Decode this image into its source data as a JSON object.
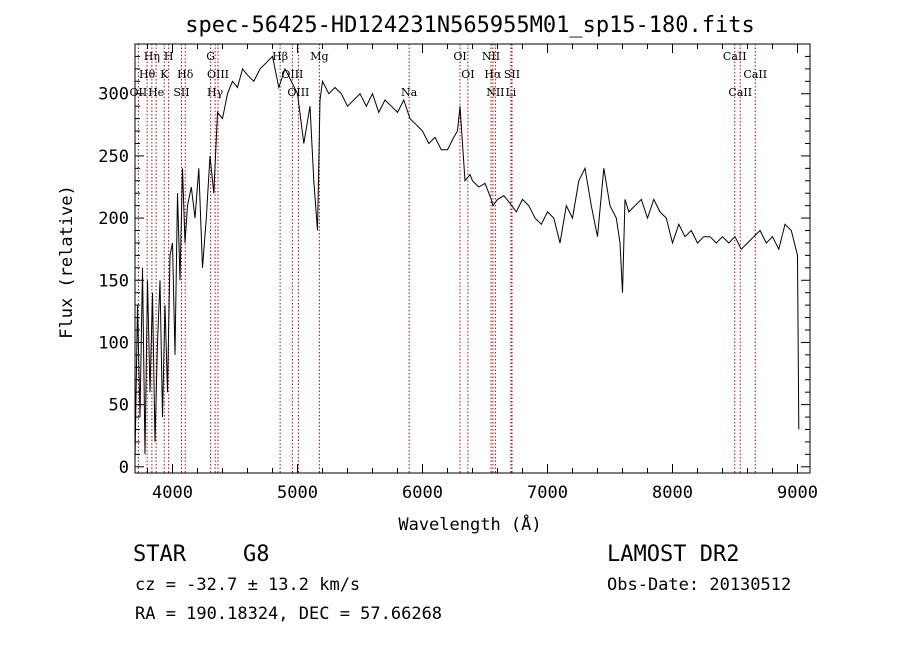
{
  "title": "spec-56425-HD124231N565955M01_sp15-180.fits",
  "footer": {
    "class_label": "STAR",
    "subclass": "G8",
    "survey": "LAMOST DR2",
    "cz": "cz = -32.7 ± 13.2 km/s",
    "obs_date": "Obs-Date: 20130512",
    "radec": "RA = 190.18324, DEC =  57.66268"
  },
  "chart_data": {
    "type": "line",
    "title": "spec-56425-HD124231N565955M01_sp15-180.fits",
    "xlabel": "Wavelength (Å)",
    "ylabel": "Flux (relative)",
    "xlim": [
      3700,
      9100
    ],
    "ylim": [
      -5,
      340
    ],
    "xticks": [
      4000,
      5000,
      6000,
      7000,
      8000,
      9000
    ],
    "yticks": [
      0,
      50,
      100,
      150,
      200,
      250,
      300
    ],
    "grid": false,
    "line_color": "#000000",
    "marker_color": "#a01010",
    "series": [
      {
        "x": [
          3700,
          3720,
          3740,
          3760,
          3780,
          3800,
          3820,
          3840,
          3860,
          3880,
          3900,
          3920,
          3940,
          3960,
          3980,
          4000,
          4020,
          4040,
          4060,
          4080,
          4100,
          4120,
          4150,
          4180,
          4210,
          4240,
          4270,
          4300,
          4330,
          4360,
          4400,
          4440,
          4480,
          4520,
          4560,
          4600,
          4650,
          4700,
          4750,
          4800,
          4850,
          4900,
          4950,
          5000,
          5050,
          5100,
          5130,
          5160,
          5180,
          5200,
          5250,
          5300,
          5350,
          5400,
          5450,
          5500,
          5550,
          5600,
          5650,
          5700,
          5750,
          5800,
          5850,
          5900,
          5950,
          6000,
          6050,
          6100,
          6150,
          6200,
          6250,
          6280,
          6300,
          6320,
          6340,
          6380,
          6400,
          6450,
          6500,
          6550,
          6563,
          6600,
          6650,
          6700,
          6750,
          6800,
          6850,
          6900,
          6950,
          7000,
          7050,
          7100,
          7150,
          7200,
          7250,
          7300,
          7350,
          7400,
          7450,
          7500,
          7550,
          7580,
          7600,
          7620,
          7650,
          7700,
          7750,
          7800,
          7850,
          7900,
          7950,
          8000,
          8050,
          8100,
          8150,
          8200,
          8250,
          8300,
          8350,
          8400,
          8450,
          8500,
          8550,
          8600,
          8650,
          8700,
          8750,
          8800,
          8850,
          8900,
          8950,
          9000,
          9010
        ],
        "y": [
          5,
          130,
          40,
          160,
          10,
          150,
          60,
          140,
          20,
          100,
          150,
          40,
          130,
          60,
          170,
          180,
          90,
          220,
          150,
          240,
          180,
          210,
          225,
          200,
          240,
          160,
          200,
          250,
          220,
          285,
          280,
          300,
          310,
          305,
          320,
          315,
          310,
          320,
          325,
          330,
          305,
          320,
          310,
          300,
          260,
          290,
          230,
          190,
          295,
          310,
          300,
          305,
          300,
          290,
          295,
          300,
          290,
          300,
          285,
          295,
          290,
          285,
          295,
          280,
          275,
          270,
          260,
          265,
          255,
          255,
          265,
          270,
          290,
          260,
          230,
          235,
          230,
          225,
          228,
          215,
          210,
          215,
          218,
          212,
          205,
          215,
          210,
          200,
          195,
          205,
          200,
          180,
          210,
          200,
          230,
          240,
          210,
          185,
          240,
          210,
          200,
          180,
          140,
          215,
          205,
          210,
          215,
          200,
          215,
          205,
          200,
          180,
          195,
          185,
          190,
          180,
          185,
          185,
          180,
          185,
          180,
          185,
          175,
          180,
          185,
          190,
          180,
          185,
          175,
          195,
          190,
          170,
          30
        ]
      }
    ],
    "line_markers": [
      {
        "x": 3727,
        "labels": [
          "OII"
        ],
        "row": 3
      },
      {
        "x": 3797,
        "labels": [
          "Hθ"
        ],
        "row": 2
      },
      {
        "x": 3835,
        "labels": [
          "Hη"
        ],
        "row": 1
      },
      {
        "x": 3869,
        "labels": [
          "He"
        ],
        "row": 3
      },
      {
        "x": 3934,
        "labels": [
          "K"
        ],
        "row": 2
      },
      {
        "x": 3969,
        "labels": [
          "H"
        ],
        "row": 1
      },
      {
        "x": 4072,
        "labels": [
          "SII"
        ],
        "row": 3
      },
      {
        "x": 4102,
        "labels": [
          "Hδ"
        ],
        "row": 2
      },
      {
        "x": 4305,
        "labels": [
          "G"
        ],
        "row": 1
      },
      {
        "x": 4341,
        "labels": [
          "Hγ"
        ],
        "row": 3
      },
      {
        "x": 4364,
        "labels": [
          "OIII"
        ],
        "row": 2
      },
      {
        "x": 4861,
        "labels": [
          "Hβ"
        ],
        "row": 1
      },
      {
        "x": 4959,
        "labels": [
          "OIII"
        ],
        "row": 2
      },
      {
        "x": 5007,
        "labels": [
          "OIII"
        ],
        "row": 3
      },
      {
        "x": 5175,
        "labels": [
          "Mg"
        ],
        "row": 1
      },
      {
        "x": 5893,
        "labels": [
          "Na"
        ],
        "row": 3
      },
      {
        "x": 6300,
        "labels": [
          "OI"
        ],
        "row": 1
      },
      {
        "x": 6363,
        "labels": [
          "OI"
        ],
        "row": 2
      },
      {
        "x": 6548,
        "labels": [
          "NII"
        ],
        "row": 1
      },
      {
        "x": 6563,
        "labels": [
          "Hα"
        ],
        "row": 2
      },
      {
        "x": 6583,
        "labels": [
          "NII"
        ],
        "row": 3
      },
      {
        "x": 6716,
        "labels": [
          "SII"
        ],
        "row": 2
      },
      {
        "x": 6707,
        "labels": [
          "Li"
        ],
        "row": 3
      },
      {
        "x": 8498,
        "labels": [
          "CaII"
        ],
        "row": 1
      },
      {
        "x": 8542,
        "labels": [
          "CaII"
        ],
        "row": 3
      },
      {
        "x": 8662,
        "labels": [
          "CaII"
        ],
        "row": 2
      }
    ]
  }
}
